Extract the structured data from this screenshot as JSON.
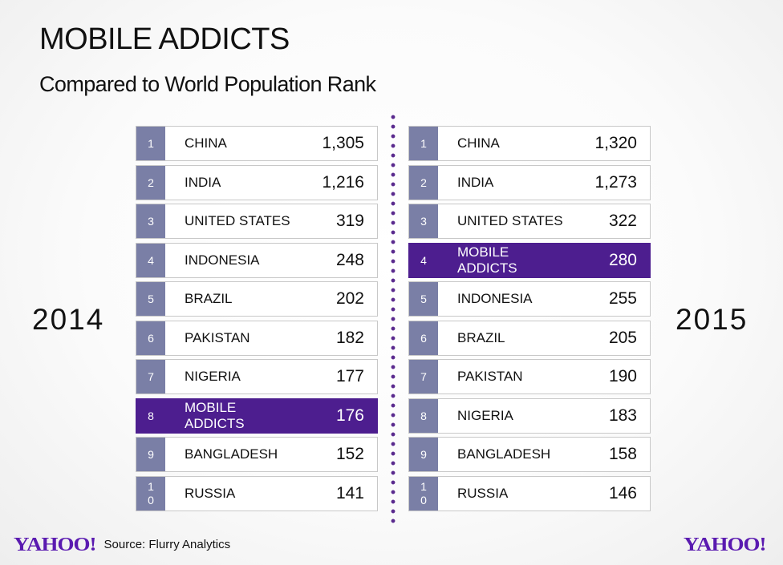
{
  "title": "MOBILE ADDICTS",
  "subtitle": "Compared to World Population Rank",
  "brand_color": "#4d1e8f",
  "rank_color": "#7a7fa6",
  "left_year": "2014",
  "right_year": "2015",
  "rows_2014": [
    {
      "rank": "1",
      "name": "CHINA",
      "value": "1,305",
      "highlight": false
    },
    {
      "rank": "2",
      "name": "INDIA",
      "value": "1,216",
      "highlight": false
    },
    {
      "rank": "3",
      "name": "UNITED STATES",
      "value": "319",
      "highlight": false
    },
    {
      "rank": "4",
      "name": "INDONESIA",
      "value": "248",
      "highlight": false
    },
    {
      "rank": "5",
      "name": "BRAZIL",
      "value": "202",
      "highlight": false
    },
    {
      "rank": "6",
      "name": "PAKISTAN",
      "value": "182",
      "highlight": false
    },
    {
      "rank": "7",
      "name": "NIGERIA",
      "value": "177",
      "highlight": false
    },
    {
      "rank": "8",
      "name": "MOBILE ADDICTS",
      "value": "176",
      "highlight": true
    },
    {
      "rank": "9",
      "name": "BANGLADESH",
      "value": "152",
      "highlight": false
    },
    {
      "rank": "10",
      "name": "RUSSIA",
      "value": "141",
      "highlight": false
    }
  ],
  "rows_2015": [
    {
      "rank": "1",
      "name": "CHINA",
      "value": "1,320",
      "highlight": false
    },
    {
      "rank": "2",
      "name": "INDIA",
      "value": "1,273",
      "highlight": false
    },
    {
      "rank": "3",
      "name": "UNITED STATES",
      "value": "322",
      "highlight": false
    },
    {
      "rank": "4",
      "name": "MOBILE ADDICTS",
      "value": "280",
      "highlight": true
    },
    {
      "rank": "5",
      "name": "INDONESIA",
      "value": "255",
      "highlight": false
    },
    {
      "rank": "6",
      "name": "BRAZIL",
      "value": "205",
      "highlight": false
    },
    {
      "rank": "7",
      "name": "PAKISTAN",
      "value": "190",
      "highlight": false
    },
    {
      "rank": "8",
      "name": "NIGERIA",
      "value": "183",
      "highlight": false
    },
    {
      "rank": "9",
      "name": "BANGLADESH",
      "value": "158",
      "highlight": false
    },
    {
      "rank": "10",
      "name": "RUSSIA",
      "value": "146",
      "highlight": false
    }
  ],
  "footer": {
    "logo_left": "YAHOO!",
    "source": "Source: Flurry Analytics",
    "logo_right": "YAHOO!"
  }
}
